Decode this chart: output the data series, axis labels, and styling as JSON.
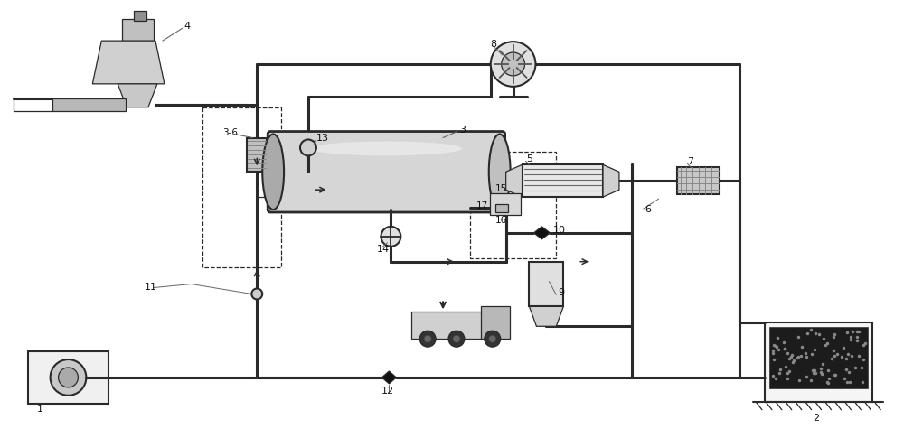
{
  "bg_color": "#ffffff",
  "line_color": "#2a2a2a",
  "label_color": "#111111",
  "pipe_lw": 2.2,
  "comp_lw": 1.5,
  "thin_lw": 0.9
}
